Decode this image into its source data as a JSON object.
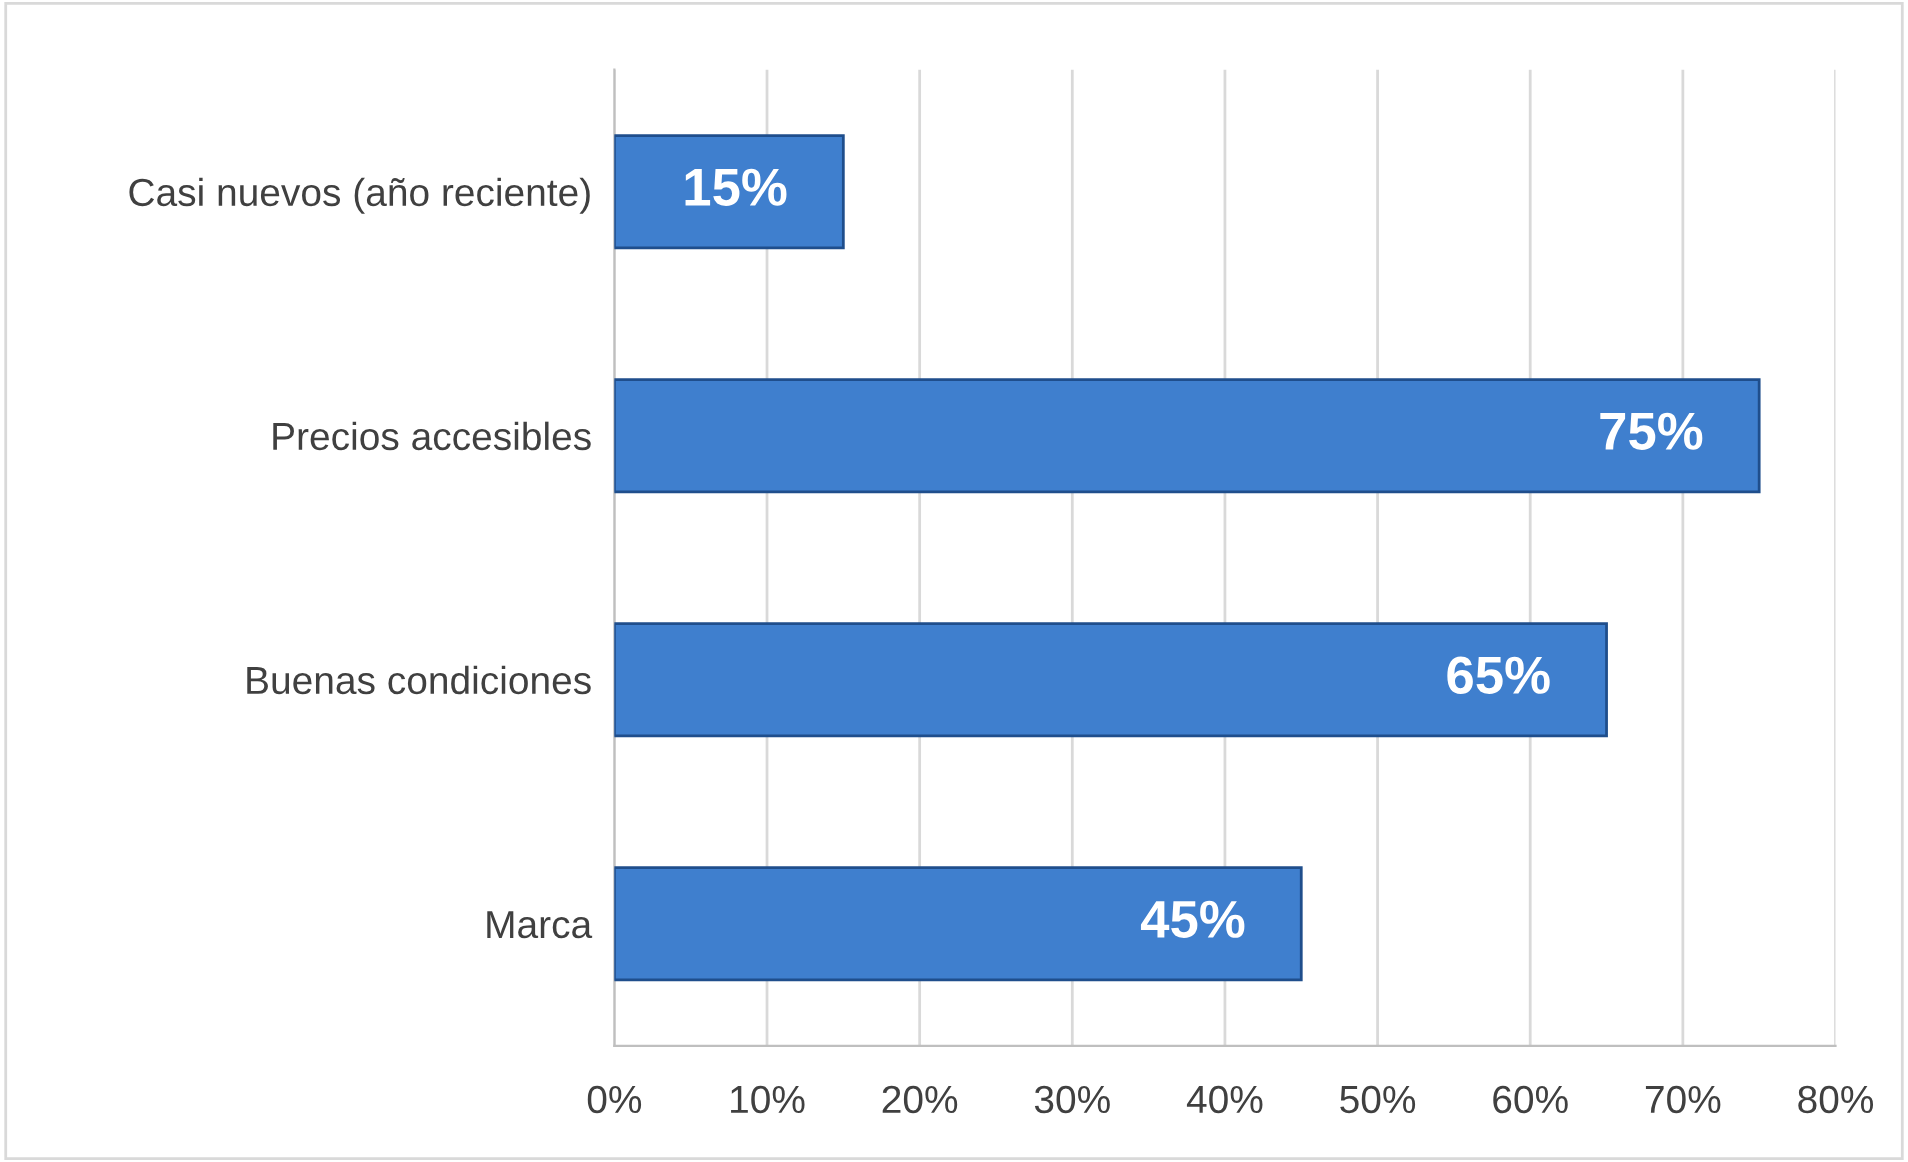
{
  "chart_data": {
    "type": "bar",
    "orientation": "horizontal",
    "categories": [
      "Casi nuevos (año reciente)",
      "Precios accesibles",
      "Buenas condiciones",
      "Marca"
    ],
    "values": [
      15,
      75,
      65,
      45
    ],
    "color": "#3f7fce",
    "value_labels": [
      "15%",
      "75%",
      "65%",
      "45%"
    ],
    "xlim": [
      0,
      80
    ],
    "xticks": [
      {
        "value": 0,
        "label": "0%"
      },
      {
        "value": 10,
        "label": "10%"
      },
      {
        "value": 20,
        "label": "20%"
      },
      {
        "value": 30,
        "label": "30%"
      },
      {
        "value": 40,
        "label": "40%"
      },
      {
        "value": 50,
        "label": "50%"
      },
      {
        "value": 60,
        "label": "60%"
      },
      {
        "value": 70,
        "label": "70%"
      },
      {
        "value": 80,
        "label": "80%"
      }
    ],
    "grid": "x",
    "legend": false
  }
}
